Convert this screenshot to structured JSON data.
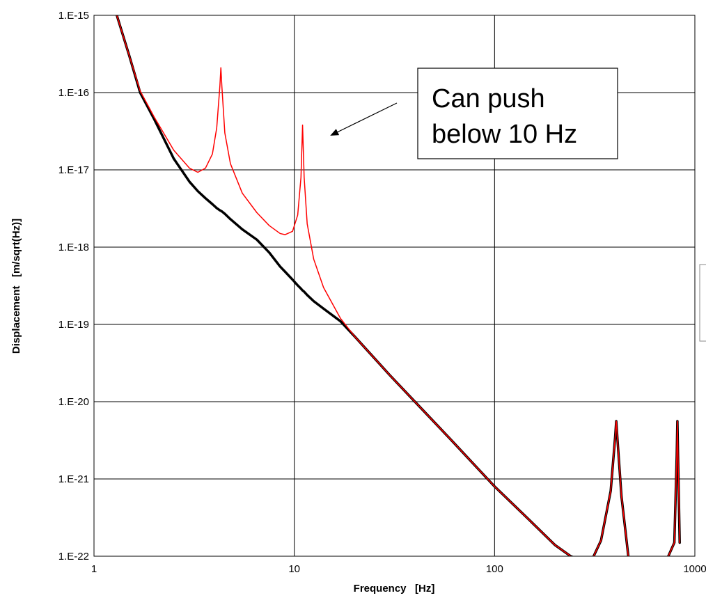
{
  "chart_data": {
    "type": "line",
    "log_x": true,
    "log_y": true,
    "grid": true,
    "x_label": "Frequency   [Hz]",
    "y_label": "Displacement   [m/sqrt(Hz)]",
    "annotation": [
      "Can push",
      "below 10 Hz"
    ],
    "xlim": [
      1,
      1000
    ],
    "ylim": [
      1e-22,
      1e-15
    ],
    "xticks": [
      1,
      10,
      100,
      1000
    ],
    "yticks": [
      {
        "value": 1e-22,
        "label": "1.E-22"
      },
      {
        "value": 1e-21,
        "label": "1.E-21"
      },
      {
        "value": 1e-20,
        "label": "1.E-20"
      },
      {
        "value": 1e-19,
        "label": "1.E-19"
      },
      {
        "value": 1e-18,
        "label": "1.E-18"
      },
      {
        "value": 1e-17,
        "label": "1.E-17"
      },
      {
        "value": 1e-16,
        "label": "1.E-16"
      },
      {
        "value": 1e-15,
        "label": "1.E-15"
      }
    ],
    "x": [
      1.3,
      1.5,
      1.7,
      2,
      2.5,
      3,
      3.3,
      3.6,
      3.9,
      4.1,
      4.25,
      4.3,
      4.35,
      4.5,
      4.8,
      5.5,
      6.5,
      7.5,
      8.5,
      9,
      9.8,
      10.4,
      10.8,
      11,
      11.2,
      11.6,
      12.5,
      14,
      17,
      20,
      30,
      40,
      60,
      100,
      150,
      200,
      240,
      300,
      340,
      380,
      400,
      405,
      410,
      430,
      470,
      600,
      790,
      812,
      818,
      824,
      840
    ],
    "series": [
      {
        "color": "#000000",
        "width": 3.5,
        "values": [
          1e-15,
          3e-16,
          1e-16,
          4.5e-17,
          1.4e-17,
          7e-18,
          5.3e-18,
          4.3e-18,
          3.6e-18,
          3.2e-18,
          3e-18,
          2.95e-18,
          2.9e-18,
          2.7e-18,
          2.3e-18,
          1.7e-18,
          1.25e-18,
          8.5e-19,
          5.6e-19,
          4.8e-19,
          3.8e-19,
          3.2e-19,
          2.9e-19,
          2.75e-19,
          2.65e-19,
          2.4e-19,
          2e-19,
          1.6e-19,
          1.1e-19,
          7e-20,
          2.2e-20,
          1e-20,
          3.3e-21,
          8e-22,
          2.9e-22,
          1.4e-22,
          1e-22,
          8e-23,
          1.6e-22,
          7e-22,
          3.5e-21,
          5.6e-21,
          3.5e-21,
          6e-22,
          8e-23,
          3e-23,
          1.5e-22,
          2e-21,
          5.6e-21,
          2e-21,
          1.5e-22
        ]
      },
      {
        "color": "#ff0000",
        "width": 1.5,
        "values": [
          1e-15,
          3e-16,
          1.05e-16,
          4.8e-17,
          1.8e-17,
          1.05e-17,
          9.3e-18,
          1.05e-17,
          1.6e-17,
          3.5e-17,
          1.2e-16,
          2.1e-16,
          1.2e-16,
          3e-17,
          1.2e-17,
          5e-18,
          2.8e-18,
          1.9e-18,
          1.5e-18,
          1.45e-18,
          1.6e-18,
          2.6e-18,
          8e-18,
          3.8e-17,
          8e-18,
          2e-18,
          7e-19,
          3e-19,
          1.2e-19,
          7e-20,
          2.2e-20,
          1e-20,
          3.3e-21,
          8e-22,
          2.9e-22,
          1.4e-22,
          1e-22,
          8e-23,
          1.6e-22,
          7e-22,
          3.5e-21,
          5.6e-21,
          3.5e-21,
          6e-22,
          8e-23,
          3e-23,
          1.5e-22,
          2e-21,
          5.6e-21,
          2e-21,
          1.5e-22
        ]
      }
    ]
  }
}
